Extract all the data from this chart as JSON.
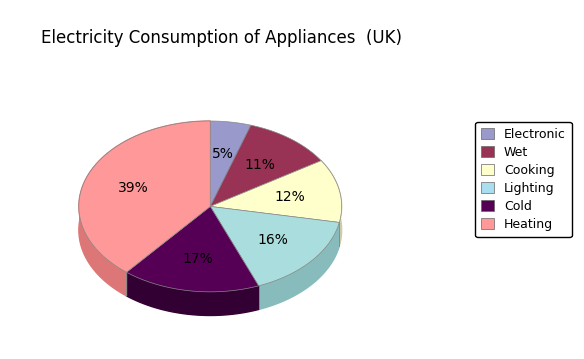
{
  "title": "Electricity Consumption of Appliances  (UK)",
  "labels": [
    "Electronic",
    "Wet",
    "Cooking",
    "Lighting",
    "Cold",
    "Heating"
  ],
  "values": [
    5,
    11,
    12,
    16,
    17,
    39
  ],
  "colors": [
    "#9999CC",
    "#993355",
    "#FFFFCC",
    "#AADDDD",
    "#550055",
    "#FF9999"
  ],
  "shadow_colors": [
    "#7777AA",
    "#772233",
    "#CCCCAA",
    "#88BBBB",
    "#330033",
    "#DD7777"
  ],
  "pct_labels": [
    "5%",
    "11%",
    "12%",
    "16%",
    "17%",
    "39%"
  ],
  "legend_colors": [
    "#9999CC",
    "#993355",
    "#FFFFCC",
    "#AADDEE",
    "#550055",
    "#FF9999"
  ],
  "startangle": 90,
  "title_fontsize": 12,
  "label_fontsize": 10,
  "legend_fontsize": 9
}
